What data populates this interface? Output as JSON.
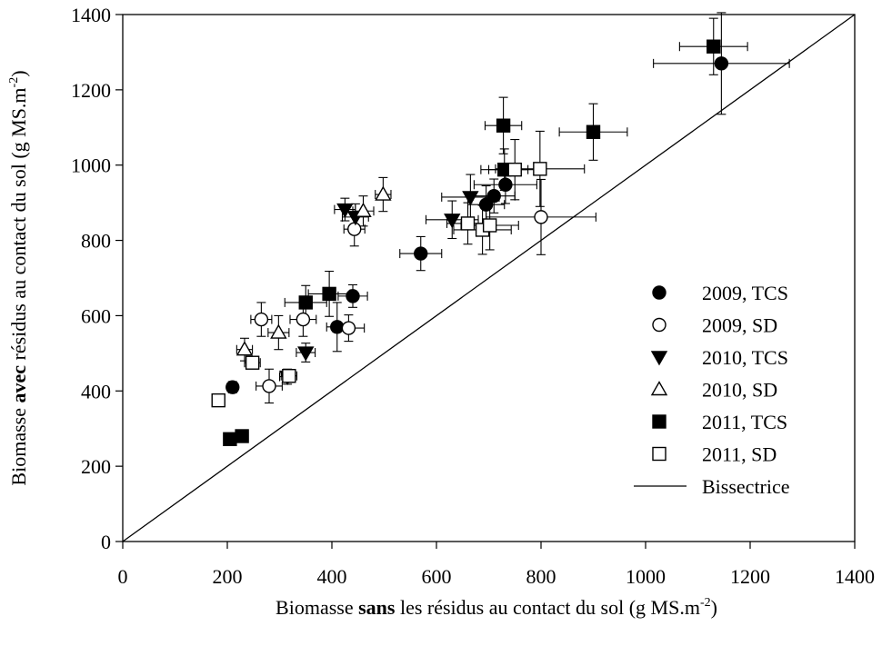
{
  "chart_data": {
    "type": "scatter",
    "title": "",
    "xlabel": {
      "prefix": "Biomasse ",
      "bold": "sans",
      "suffix": " les résidus au contact du sol (g MS.m",
      "sup": "-2",
      "end": ")"
    },
    "ylabel": {
      "prefix": "Biomasse ",
      "bold": "avec",
      "suffix": " résidus au contact du sol (g MS.m",
      "sup": "-2",
      "end": ")"
    },
    "xlim": [
      0,
      1400
    ],
    "ylim": [
      0,
      1400
    ],
    "xticks": [
      "0",
      "200",
      "400",
      "600",
      "800",
      "1000",
      "1200",
      "1400"
    ],
    "yticks": [
      "0",
      "200",
      "400",
      "600",
      "800",
      "1000",
      "1200",
      "1400"
    ],
    "grid": false,
    "legend_position": "bottom-right",
    "series": [
      {
        "name": "2009, TCS",
        "marker": "circle",
        "fill": "#000000",
        "points": [
          {
            "x": 210,
            "y": 410,
            "ex": 10,
            "ey": 15
          },
          {
            "x": 410,
            "y": 570,
            "ex": 20,
            "ey": 65
          },
          {
            "x": 440,
            "y": 652,
            "ex": 28,
            "ey": 30
          },
          {
            "x": 570,
            "y": 765,
            "ex": 40,
            "ey": 45
          },
          {
            "x": 695,
            "y": 895,
            "ex": 35,
            "ey": 50
          },
          {
            "x": 710,
            "y": 918,
            "ex": 40,
            "ey": 45
          },
          {
            "x": 732,
            "y": 948,
            "ex": 60,
            "ey": 50
          },
          {
            "x": 1145,
            "y": 1270,
            "ex": 130,
            "ey": 135
          }
        ]
      },
      {
        "name": "2009, SD",
        "marker": "circle",
        "fill": "#ffffff",
        "points": [
          {
            "x": 265,
            "y": 590,
            "ex": 20,
            "ey": 45
          },
          {
            "x": 280,
            "y": 413,
            "ex": 25,
            "ey": 45
          },
          {
            "x": 345,
            "y": 590,
            "ex": 25,
            "ey": 45
          },
          {
            "x": 432,
            "y": 567,
            "ex": 30,
            "ey": 35
          },
          {
            "x": 443,
            "y": 830,
            "ex": 20,
            "ey": 45
          },
          {
            "x": 800,
            "y": 862,
            "ex": 105,
            "ey": 100
          }
        ]
      },
      {
        "name": "2010, TCS",
        "marker": "triangle-down",
        "fill": "#000000",
        "points": [
          {
            "x": 315,
            "y": 438,
            "ex": 15,
            "ey": 20
          },
          {
            "x": 350,
            "y": 502,
            "ex": 18,
            "ey": 25
          },
          {
            "x": 425,
            "y": 882,
            "ex": 20,
            "ey": 30
          },
          {
            "x": 445,
            "y": 862,
            "ex": 25,
            "ey": 35
          },
          {
            "x": 630,
            "y": 855,
            "ex": 50,
            "ey": 50
          },
          {
            "x": 665,
            "y": 915,
            "ex": 55,
            "ey": 60
          }
        ]
      },
      {
        "name": "2010, SD",
        "marker": "triangle-up",
        "fill": "#ffffff",
        "points": [
          {
            "x": 233,
            "y": 510,
            "ex": 15,
            "ey": 30
          },
          {
            "x": 298,
            "y": 555,
            "ex": 20,
            "ey": 45
          },
          {
            "x": 460,
            "y": 878,
            "ex": 20,
            "ey": 40
          },
          {
            "x": 498,
            "y": 922,
            "ex": 15,
            "ey": 45
          }
        ]
      },
      {
        "name": "2011, TCS",
        "marker": "square",
        "fill": "#000000",
        "points": [
          {
            "x": 205,
            "y": 272,
            "ex": 12,
            "ey": 8
          },
          {
            "x": 228,
            "y": 280,
            "ex": 12,
            "ey": 8
          },
          {
            "x": 350,
            "y": 635,
            "ex": 40,
            "ey": 45
          },
          {
            "x": 395,
            "y": 658,
            "ex": 40,
            "ey": 60
          },
          {
            "x": 728,
            "y": 1105,
            "ex": 35,
            "ey": 75
          },
          {
            "x": 730,
            "y": 988,
            "ex": 45,
            "ey": 55
          },
          {
            "x": 900,
            "y": 1088,
            "ex": 65,
            "ey": 75
          },
          {
            "x": 1130,
            "y": 1315,
            "ex": 65,
            "ey": 75
          }
        ]
      },
      {
        "name": "2011, SD",
        "marker": "square",
        "fill": "#ffffff",
        "points": [
          {
            "x": 183,
            "y": 375,
            "ex": 8,
            "ey": 10
          },
          {
            "x": 248,
            "y": 475,
            "ex": 15,
            "ey": 15
          },
          {
            "x": 318,
            "y": 440,
            "ex": 15,
            "ey": 15
          },
          {
            "x": 660,
            "y": 845,
            "ex": 40,
            "ey": 55
          },
          {
            "x": 688,
            "y": 828,
            "ex": 55,
            "ey": 65
          },
          {
            "x": 702,
            "y": 840,
            "ex": 55,
            "ey": 65
          },
          {
            "x": 750,
            "y": 988,
            "ex": 50,
            "ey": 80
          },
          {
            "x": 798,
            "y": 990,
            "ex": 85,
            "ey": 100
          }
        ]
      }
    ],
    "reference_line": {
      "name": "Bissectrice",
      "from": [
        0,
        0
      ],
      "to": [
        1400,
        1400
      ]
    }
  }
}
